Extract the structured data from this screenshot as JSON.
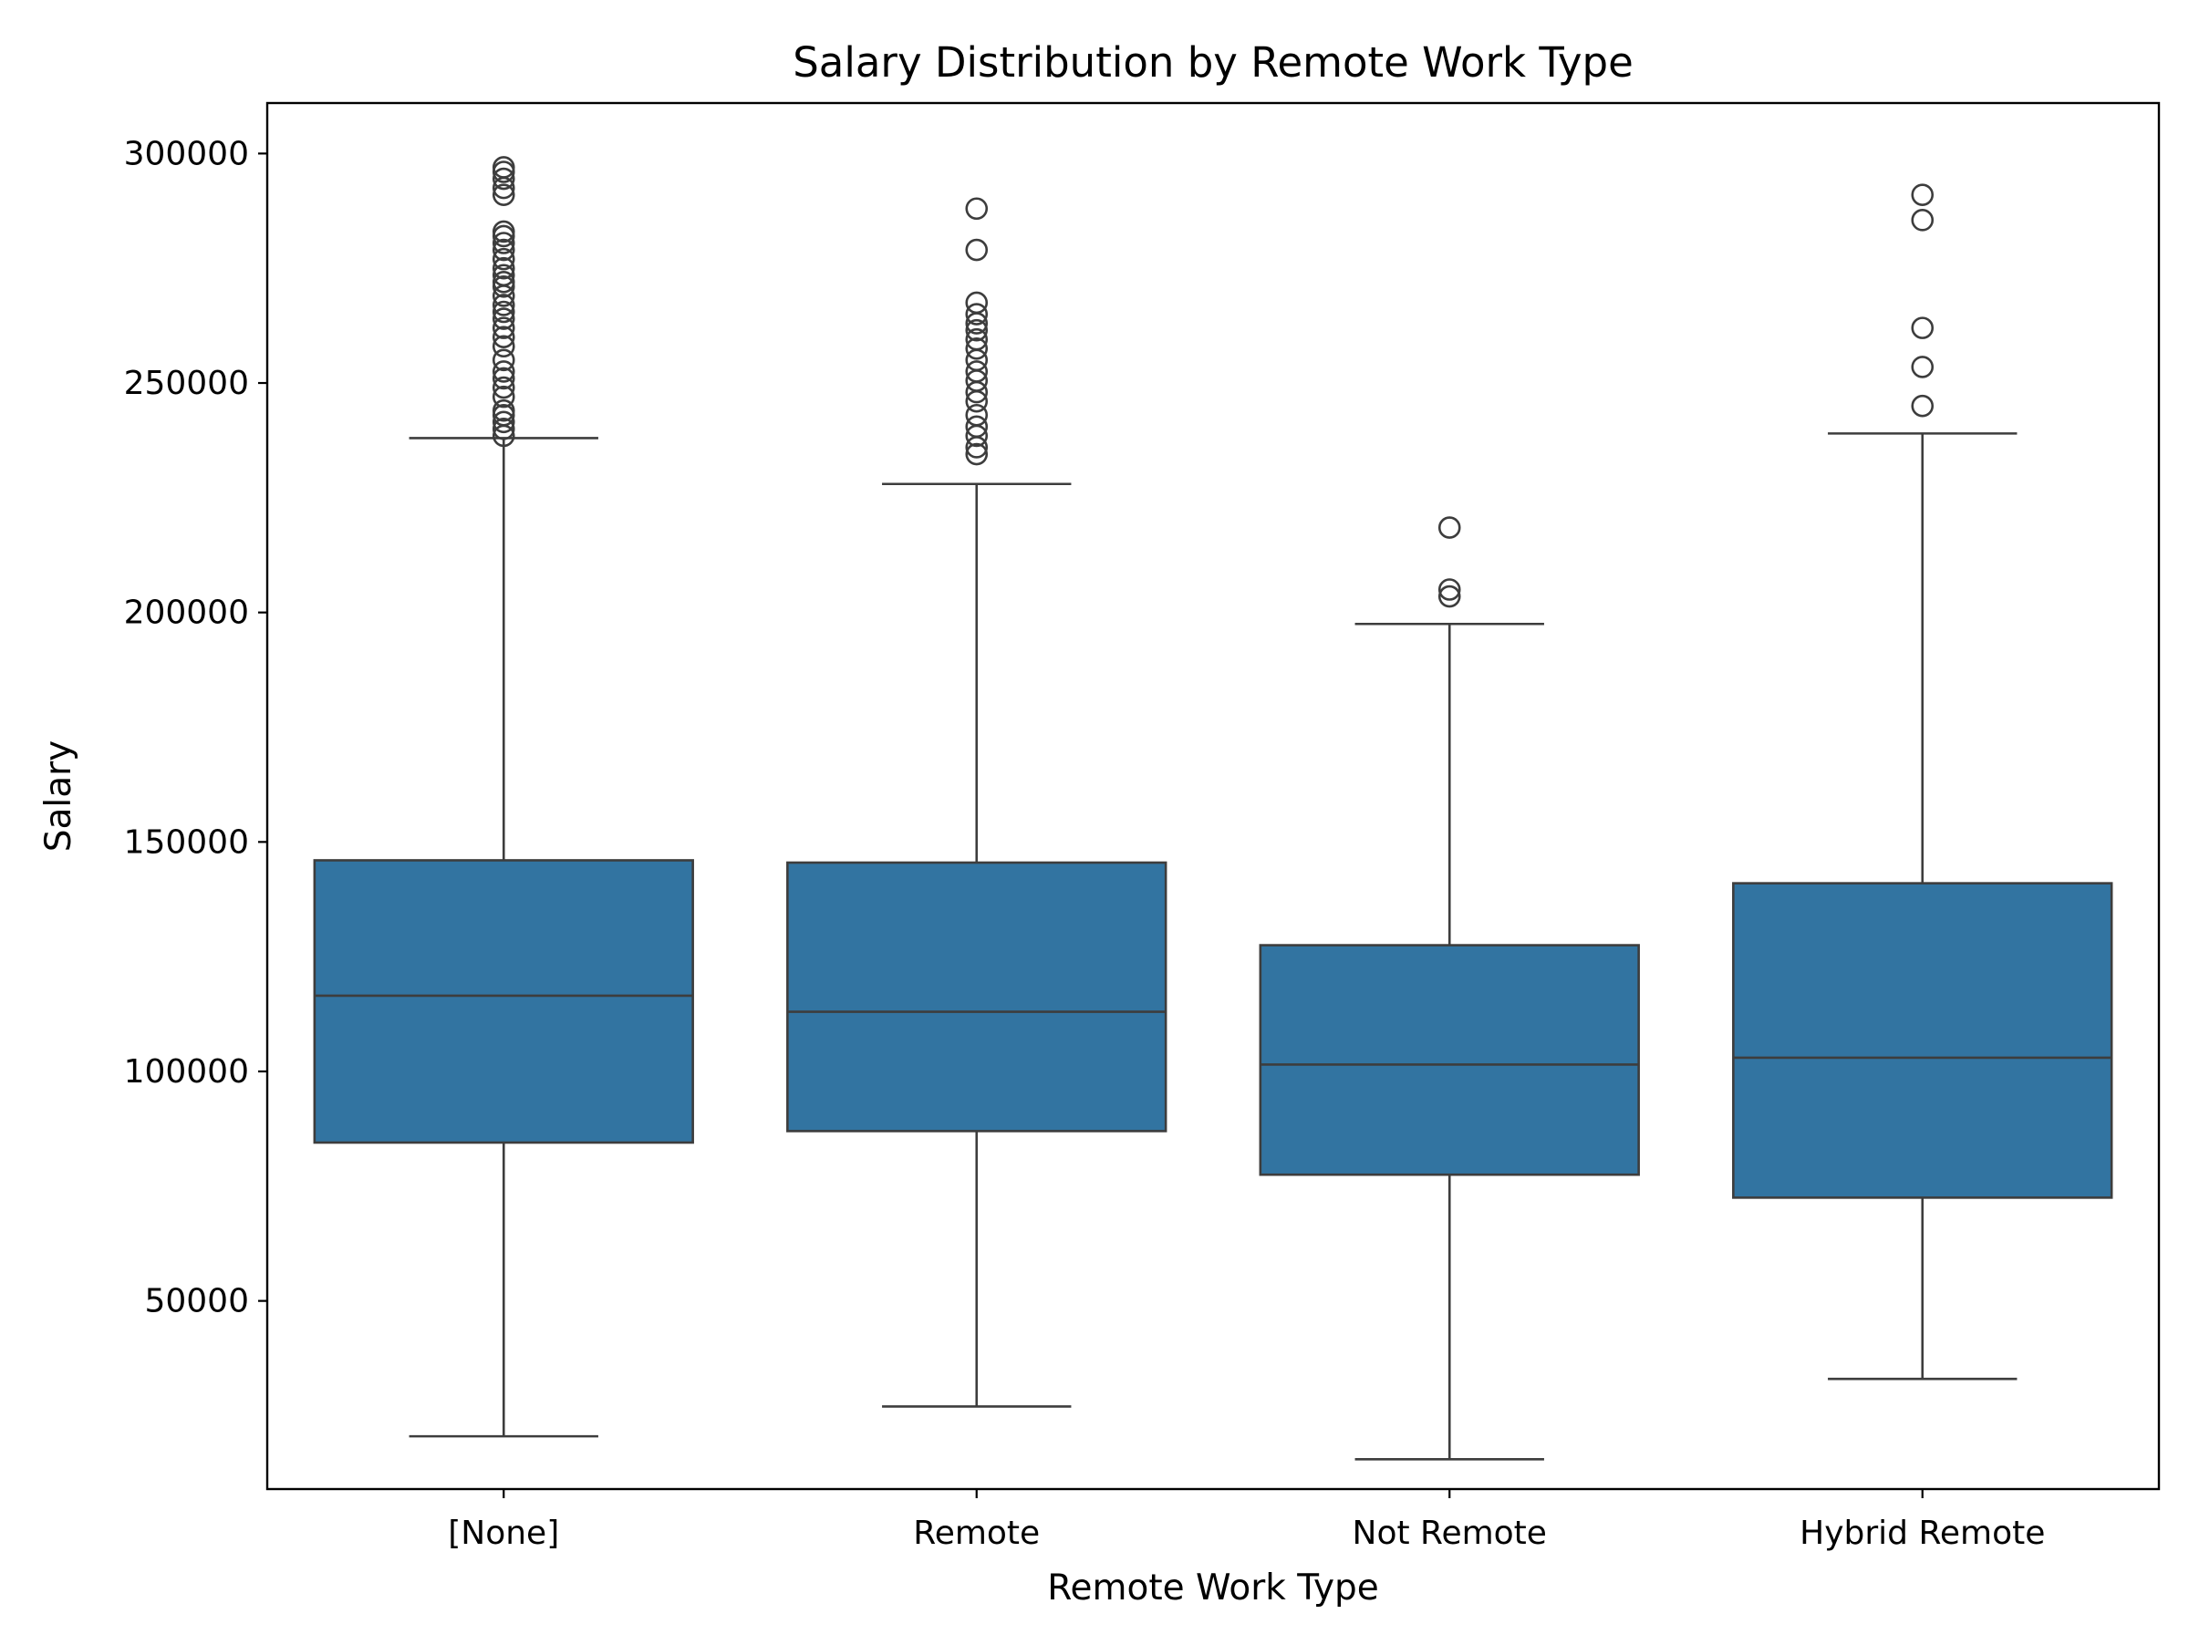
{
  "chart_data": {
    "type": "box",
    "title": "Salary Distribution by Remote Work Type",
    "xlabel": "Remote Work Type",
    "ylabel": "Salary",
    "ylim": [
      9000,
      311000
    ],
    "yticks": [
      50000,
      100000,
      150000,
      200000,
      250000,
      300000
    ],
    "grid": false,
    "legend": "none",
    "colors": {
      "box_fill": "#3274a1",
      "line": "#3d3d3d",
      "frame": "#000000"
    },
    "categories": [
      "[None]",
      "Remote",
      "Not Remote",
      "Hybrid Remote"
    ],
    "boxes": [
      {
        "category": "[None]",
        "whisker_low": 20500,
        "q1": 84500,
        "median": 116500,
        "q3": 146000,
        "whisker_high": 238000,
        "outliers": [
          238500,
          240000,
          241500,
          243000,
          244000,
          247000,
          249000,
          251000,
          252500,
          255000,
          258000,
          260000,
          262000,
          264000,
          265500,
          267000,
          269000,
          271000,
          272000,
          273500,
          275000,
          277000,
          279000,
          280500,
          282000,
          283000,
          291000,
          292500,
          294500,
          296000,
          297000
        ]
      },
      {
        "category": "Remote",
        "whisker_low": 27000,
        "q1": 87000,
        "median": 113000,
        "q3": 145500,
        "whisker_high": 228000,
        "outliers": [
          234500,
          236000,
          238500,
          240500,
          243000,
          246000,
          248000,
          250500,
          252500,
          255000,
          257500,
          259500,
          261500,
          263000,
          265000,
          267500,
          279000,
          288000
        ]
      },
      {
        "category": "Not Remote",
        "whisker_low": 15500,
        "q1": 77500,
        "median": 101500,
        "q3": 127500,
        "whisker_high": 197500,
        "outliers": [
          203500,
          205000,
          218500
        ]
      },
      {
        "category": "Hybrid Remote",
        "whisker_low": 33000,
        "q1": 72500,
        "median": 103000,
        "q3": 141000,
        "whisker_high": 239000,
        "outliers": [
          245000,
          253500,
          262000,
          285500,
          291000
        ]
      }
    ]
  }
}
